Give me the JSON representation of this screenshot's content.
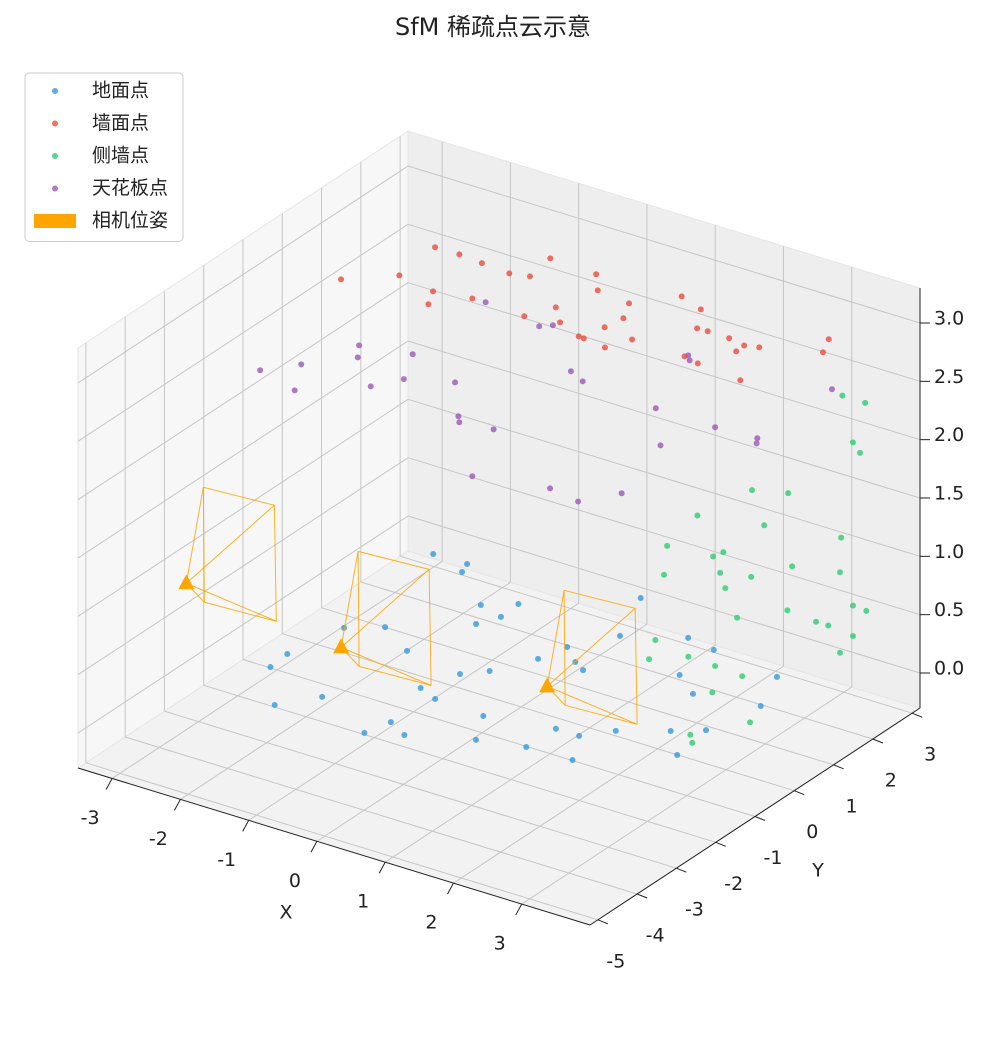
{
  "chart_data": {
    "type": "scatter3d",
    "title": "SfM 稀疏点云示意",
    "xlabel": "X",
    "ylabel": "Y",
    "xlim": [
      -3.5,
      4.0
    ],
    "ylim": [
      -5.2,
      3.2
    ],
    "zlim": [
      -0.3,
      3.3
    ],
    "xticks": [
      -3,
      -2,
      -1,
      0,
      1,
      2,
      3
    ],
    "yticks": [
      -5,
      -4,
      -3,
      -2,
      -1,
      0,
      1,
      2,
      3
    ],
    "zticks": [
      {
        "value": 0,
        "label": "0.0"
      },
      0.5,
      {
        "value": 1,
        "label": "1.0"
      },
      1.5,
      {
        "value": 2,
        "label": "2.0"
      },
      2.5,
      {
        "value": 3,
        "label": "3.0"
      }
    ],
    "grid": true,
    "legend": "upper left",
    "series": [
      {
        "name": "地面点",
        "color": "#3498db",
        "marker": "circle",
        "x": [
          -2.67,
          -2.18,
          -1.06,
          -1.42,
          -1.04,
          -1.18,
          -2.44,
          -2.04,
          -1.46,
          -2.61,
          -2.58,
          -0.58,
          -0.33,
          -0.03,
          0.08,
          0.59,
          0.44,
          0.07,
          1.15,
          1.59,
          1.63,
          2.63,
          2.91,
          -0.76,
          -0.45,
          -1.61,
          -1.96,
          -0.54,
          -0.64,
          -0.21,
          0.29,
          0.58,
          1.19,
          1.21,
          1.55,
          1.84,
          1.85,
          2.39,
          2.73,
          2.82,
          -2.11,
          0.39,
          2.05
        ],
        "y": [
          2.4,
          2.41,
          1.77,
          1.44,
          1.29,
          0.9,
          -0.27,
          0.08,
          -0.37,
          -1.42,
          -1.9,
          -0.55,
          -0.23,
          0.48,
          1.03,
          0.55,
          1.75,
          2.92,
          2.25,
          2.14,
          1.2,
          1.94,
          1.04,
          -1.24,
          -1.41,
          -2.27,
          -2.87,
          -2.38,
          -2.88,
          -2.61,
          -1.47,
          -2.16,
          -1.94,
          -1.22,
          -1.22,
          -0.79,
          -1.91,
          -0.35,
          -0.04,
          -0.93,
          2.16,
          0.7,
          0.81
        ],
        "z": [
          0,
          0,
          0,
          0,
          0,
          0,
          0,
          0,
          0,
          0,
          0,
          0,
          0,
          0,
          0,
          0,
          0,
          0,
          0,
          0,
          0,
          0,
          0,
          0,
          0,
          0,
          0,
          0,
          0,
          0,
          0,
          0,
          0,
          0,
          0,
          0,
          0,
          0,
          0,
          0,
          0,
          0,
          0
        ]
      },
      {
        "name": "墙面点",
        "color": "#e74c3c",
        "marker": "circle",
        "x": [
          -2.35,
          -2.0,
          -1.64,
          -1.21,
          -0.96,
          -1.03,
          -0.33,
          -0.07,
          -2.8,
          -2.28,
          -1.7,
          -1.55,
          -1.2,
          -0.41,
          -0.23,
          0.04,
          0.44,
          0.52,
          0.56,
          0.87,
          0.61,
          0.44,
          1.02,
          0.86,
          1.25,
          1.5,
          1.65,
          1.97,
          2.23,
          2.41,
          2.24,
          1.8,
          2.04,
          2.72,
          2.98,
          3.12
        ],
        "y": [
          1.89,
          1.9,
          1.85,
          1.8,
          1.89,
          2.53,
          2.48,
          2.07,
          0.28,
          0.86,
          0.71,
          0.33,
          0.84,
          0.79,
          1.28,
          0.92,
          0.7,
          0.69,
          1.15,
          0.62,
          1.54,
          1.98,
          1.05,
          2.59,
          2.4,
          1.87,
          1.88,
          1.87,
          1.8,
          1.87,
          1.58,
          1.03,
          0.95,
          0.85,
          2.65,
          2.26
        ],
        "z": [
          2.8,
          2.8,
          2.8,
          2.8,
          2.8,
          2.8,
          2.8,
          2.8,
          2.8,
          2.8,
          2.8,
          2.8,
          2.8,
          2.8,
          2.8,
          2.8,
          2.8,
          2.8,
          2.8,
          2.8,
          2.8,
          2.8,
          2.8,
          2.8,
          2.8,
          2.8,
          2.8,
          2.8,
          2.8,
          2.8,
          2.8,
          2.8,
          2.8,
          2.8,
          2.8,
          2.8
        ]
      },
      {
        "name": "侧墙点",
        "color": "#2ecc71",
        "marker": "circle",
        "x": [
          3.3,
          3.3,
          3.3,
          3.3,
          3.3,
          3.3,
          3.3,
          3.3,
          3.3,
          3.3,
          3.3,
          3.3,
          3.3,
          3.3,
          3.3,
          3.3,
          3.3,
          3.3,
          3.3,
          3.3,
          3.3,
          3.3,
          3.3,
          3.3,
          3.3,
          3.3,
          3.3,
          3.3,
          3.3,
          3.3,
          3.3,
          3.3,
          3.3,
          3.3,
          3.3
        ],
        "y": [
          2.44,
          3.02,
          2.71,
          2.89,
          0.14,
          1.06,
          -1.25,
          0.45,
          2.41,
          -2.02,
          -0.59,
          -0.85,
          1.16,
          2.38,
          -2.1,
          -0.67,
          0.12,
          -0.54,
          2.71,
          3.05,
          1.04,
          -0.24,
          1.77,
          2.08,
          2.71,
          -2.32,
          2.38,
          -2.48,
          -1.48,
          -0.8,
          -0.11,
          -0.87,
          0.09,
          -1.43,
          -1.38
        ],
        "z": [
          2.42,
          2.23,
          1.96,
          1.83,
          2.12,
          1.89,
          2.21,
          1.75,
          1.21,
          2.12,
          1.75,
          1.77,
          1.24,
          0.92,
          1.89,
          1.59,
          1.38,
          1.43,
          0.56,
          0.44,
          0.89,
          1.11,
          0.63,
          0.53,
          0.3,
          1.38,
          0.23,
          1.25,
          1.05,
          0.82,
          0.58,
          0.61,
          0.14,
          0.37,
          0.29
        ]
      },
      {
        "name": "天花板点",
        "color": "#9b59b6",
        "marker": "circle",
        "x": [
          -2.76,
          -2.44,
          -2.11,
          -2.15,
          -1.98,
          -1.48,
          -1.41,
          -1.19,
          -1.54,
          -0.64,
          -0.52,
          0.36,
          0.63,
          -0.63,
          -0.08,
          0.02,
          0.47,
          0.97,
          1.93,
          2.41,
          2.72,
          1.77,
          2.38,
          1.29,
          1.38,
          2.65,
          3.24,
          3.31,
          3.24
        ],
        "y": [
          -1.85,
          -1.36,
          -2.1,
          -0.39,
          -0.72,
          -0.19,
          -1.38,
          -0.92,
          1.77,
          1.57,
          1.71,
          0.64,
          0.47,
          -0.59,
          -1.46,
          -1.61,
          -1.52,
          -2.93,
          -2.62,
          -2.74,
          -2.17,
          0.35,
          -0.59,
          2.01,
          1.89,
          0.33,
          0.38,
          0.24,
          2.28
        ],
        "z": [
          2.5,
          2.5,
          2.5,
          2.5,
          2.5,
          2.5,
          2.5,
          2.5,
          2.5,
          2.5,
          2.5,
          2.5,
          2.5,
          2.5,
          2.5,
          2.5,
          2.5,
          2.5,
          2.5,
          2.5,
          2.5,
          2.5,
          2.5,
          2.5,
          2.5,
          2.5,
          2.5,
          2.5,
          2.5
        ]
      },
      {
        "name": "相机位姿",
        "color": "#ffa500",
        "marker": "triangle",
        "x": [
          -2.92,
          -0.4,
          2.25
        ],
        "y": [
          -3.45,
          -3.89,
          -3.25
        ],
        "z": [
          1.0,
          1.0,
          1.0
        ]
      }
    ]
  }
}
